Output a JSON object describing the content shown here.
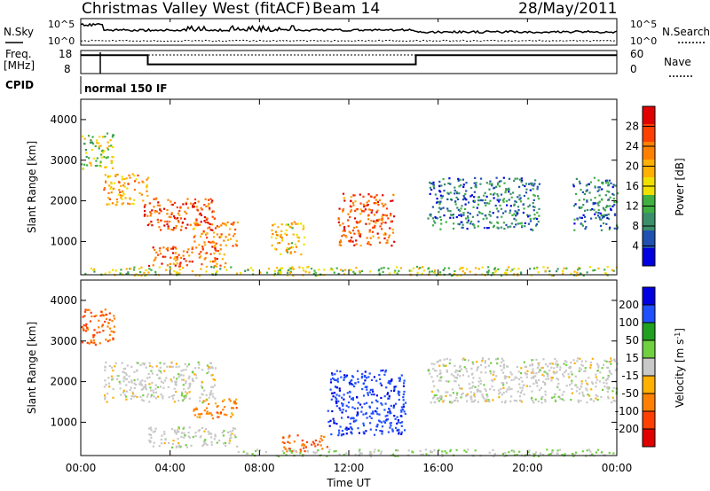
{
  "header": {
    "station": "Christmas Valley West (fitACF)",
    "beam": "Beam 14",
    "date": "28/May/2011"
  },
  "noise_panel": {
    "left_label": "N.Sky",
    "right_label": "N.Search",
    "ticks_left": [
      "10^5",
      "10^0"
    ],
    "ticks_right": [
      "10^5",
      "10^0"
    ]
  },
  "freq_panel": {
    "left_label_1": "Freq.",
    "left_label_2": "[MHz]",
    "right_label": "Nave",
    "ticks_left": [
      "18",
      "8"
    ],
    "ticks_right": [
      "60",
      "0"
    ]
  },
  "cpid": {
    "label": "CPID",
    "value": "normal 150 IF"
  },
  "power_panel": {
    "ylabel": "Slant Range [km]",
    "yticks": [
      "4000",
      "3000",
      "2000",
      "1000"
    ],
    "cbar_label": "Power [dB]",
    "cbar_ticks": [
      "28",
      "24",
      "20",
      "16",
      "12",
      "8",
      "4"
    ],
    "cbar_colors": [
      "#e00000",
      "#ff4000",
      "#ff8000",
      "#ffb000",
      "#f0e000",
      "#40b040",
      "#3a8f6a",
      "#2050b0",
      "#0000e0"
    ]
  },
  "velocity_panel": {
    "ylabel": "Slant Range [km]",
    "yticks": [
      "4000",
      "3000",
      "2000",
      "1000"
    ],
    "cbar_label": "Velocity [m s",
    "cbar_label_sup": "-1",
    "cbar_label_end": "]",
    "cbar_ticks": [
      "200",
      "100",
      "50",
      "15",
      "-15",
      "-50",
      "-100",
      "-200"
    ],
    "cbar_colors": [
      "#0000e0",
      "#2050ff",
      "#20a020",
      "#70d040",
      "#c8c8c8",
      "#ffb000",
      "#ff8000",
      "#ff4000",
      "#e00000"
    ]
  },
  "xaxis": {
    "label": "Time UT",
    "ticks": [
      "00:00",
      "04:00",
      "08:00",
      "12:00",
      "16:00",
      "20:00",
      "00:00"
    ]
  },
  "chart_data": {
    "type": "heatmap",
    "title": "Christmas Valley West (fitACF) Beam 14 28/May/2011",
    "xlabel": "Time UT",
    "ylabel": "Slant Range [km]",
    "x_range_hours": [
      0,
      24
    ],
    "y_range_km": [
      180,
      4500
    ],
    "frequency_mhz": [
      {
        "start_h": 0,
        "end_h": 3,
        "value": 16
      },
      {
        "start_h": 3,
        "end_h": 15,
        "value": 12
      },
      {
        "start_h": 15,
        "end_h": 24,
        "value": 16
      }
    ],
    "power_regions": [
      {
        "start_h": 0.0,
        "end_h": 1.5,
        "range_km": [
          2800,
          3700
        ],
        "power_db": 14
      },
      {
        "start_h": 1.0,
        "end_h": 3.0,
        "range_km": [
          1900,
          2700
        ],
        "power_db": 20
      },
      {
        "start_h": 2.8,
        "end_h": 6.0,
        "range_km": [
          1300,
          2100
        ],
        "power_db": 26
      },
      {
        "start_h": 5.0,
        "end_h": 7.0,
        "range_km": [
          900,
          1500
        ],
        "power_db": 22
      },
      {
        "start_h": 3.0,
        "end_h": 6.5,
        "range_km": [
          400,
          900
        ],
        "power_db": 24
      },
      {
        "start_h": 8.5,
        "end_h": 10.0,
        "range_km": [
          700,
          1500
        ],
        "power_db": 18
      },
      {
        "start_h": 11.5,
        "end_h": 14.0,
        "range_km": [
          900,
          2200
        ],
        "power_db": 25
      },
      {
        "start_h": 15.5,
        "end_h": 20.5,
        "range_km": [
          1300,
          2600
        ],
        "power_db": 6
      },
      {
        "start_h": 22.0,
        "end_h": 24.0,
        "range_km": [
          1300,
          2600
        ],
        "power_db": 6
      },
      {
        "start_h": 0.0,
        "end_h": 24.0,
        "range_km": [
          180,
          400
        ],
        "power_db": 14
      }
    ],
    "velocity_regions": [
      {
        "start_h": 0.0,
        "end_h": 1.5,
        "range_km": [
          2900,
          3800
        ],
        "velocity": -150
      },
      {
        "start_h": 1.0,
        "end_h": 6.0,
        "range_km": [
          1500,
          2500
        ],
        "velocity": 0
      },
      {
        "start_h": 5.0,
        "end_h": 7.0,
        "range_km": [
          1100,
          1600
        ],
        "velocity": -120
      },
      {
        "start_h": 3.0,
        "end_h": 7.0,
        "range_km": [
          400,
          900
        ],
        "velocity": 0
      },
      {
        "start_h": 9.0,
        "end_h": 11.0,
        "range_km": [
          300,
          700
        ],
        "velocity": -150
      },
      {
        "start_h": 11.0,
        "end_h": 14.5,
        "range_km": [
          700,
          2300
        ],
        "velocity": 200
      },
      {
        "start_h": 15.5,
        "end_h": 24.0,
        "range_km": [
          1500,
          2600
        ],
        "velocity": 0
      },
      {
        "start_h": 7.0,
        "end_h": 24.0,
        "range_km": [
          180,
          350
        ],
        "velocity": 30
      }
    ]
  }
}
